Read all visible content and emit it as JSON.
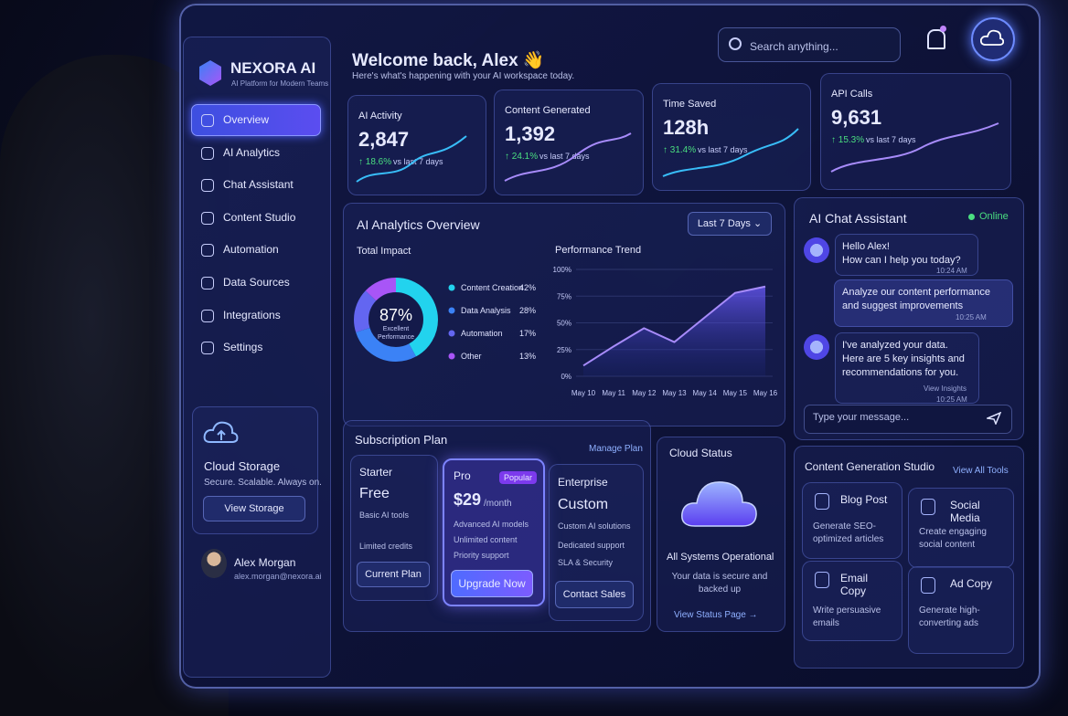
{
  "brand": {
    "name": "NEXORA AI",
    "tagline": "AI Platform for Modern Teams"
  },
  "nav": [
    "Overview",
    "AI Analytics",
    "Chat Assistant",
    "Content Studio",
    "Automation",
    "Data Sources",
    "Integrations",
    "Settings"
  ],
  "cloud_storage": {
    "title": "Cloud Storage",
    "text": "Secure. Scalable. Always on.",
    "button": "View Storage"
  },
  "user": {
    "name": "Alex Morgan",
    "email": "alex.morgan@nexora.ai"
  },
  "header": {
    "title": "Welcome back, Alex 👋",
    "subtitle": "Here's what's happening with your AI workspace today.",
    "search": "Search anything..."
  },
  "stats": [
    {
      "label": "AI Activity",
      "value": "2,847",
      "change": "18.6%",
      "period": "vs last 7 days"
    },
    {
      "label": "Content Generated",
      "value": "1,392",
      "change": "24.1%",
      "period": "vs last 7 days"
    },
    {
      "label": "Time Saved",
      "value": "128h",
      "change": "31.4%",
      "period": "vs last 7 days"
    },
    {
      "label": "API Calls",
      "value": "9,631",
      "change": "15.3%",
      "period": "vs last 7 days"
    }
  ],
  "analytics": {
    "title": "AI Analytics Overview",
    "range": "Last 7 Days"
  },
  "chart_data": [
    {
      "type": "pie",
      "title": "Total Impact",
      "center_label": "87%",
      "center_sublabel": "Excellent Performance",
      "categories": [
        "Content Creation",
        "Data Analysis",
        "Automation",
        "Other"
      ],
      "values": [
        42,
        28,
        17,
        13
      ],
      "value_labels": [
        "42%",
        "28%",
        "17%",
        "13%"
      ],
      "colors": [
        "#22d3ee",
        "#3b82f6",
        "#6366f1",
        "#a855f7"
      ]
    },
    {
      "type": "line",
      "title": "Performance Trend",
      "categories": [
        "May 10",
        "May 11",
        "May 12",
        "May 13",
        "May 14",
        "May 15",
        "May 16"
      ],
      "values": [
        10,
        28,
        45,
        32,
        55,
        78,
        84
      ],
      "color": "#a78bfa",
      "ylim": [
        0,
        100
      ],
      "yticks": [
        {
          "value": 0,
          "label": "0%"
        },
        {
          "value": 25,
          "label": "25%"
        },
        {
          "value": 50,
          "label": "50%"
        },
        {
          "value": 75,
          "label": "75%"
        },
        {
          "value": 100,
          "label": "100%"
        }
      ],
      "grid": true
    }
  ],
  "chat": {
    "title": "AI Chat Assistant",
    "status": "Online",
    "messages": [
      {
        "text": "Hello Alex!\nHow can I help you today?",
        "time": "10:24 AM"
      },
      {
        "text": "Analyze our content performance and suggest improvements",
        "time": "10:25 AM"
      },
      {
        "text": "I've analyzed your data.\nHere are 5 key insights and recommendations for you.",
        "link": "View Insights",
        "time": "10:25 AM"
      }
    ],
    "input": "Type your message..."
  },
  "subscription": {
    "title": "Subscription Plan",
    "link": "Manage Plan",
    "plans": [
      {
        "name": "Starter",
        "price": "Free",
        "features": [
          "Basic AI tools",
          "Limited credits"
        ],
        "button": "Current Plan"
      },
      {
        "name": "Pro",
        "badge": "Popular",
        "price": "$29",
        "period": "/month",
        "features": [
          "Advanced AI models",
          "Unlimited content",
          "Priority support"
        ],
        "button": "Upgrade Now"
      },
      {
        "name": "Enterprise",
        "price": "Custom",
        "features": [
          "Custom AI solutions",
          "Dedicated support",
          "SLA & Security"
        ],
        "button": "Contact Sales"
      }
    ]
  },
  "cloud_status": {
    "title": "Cloud Status",
    "status": "All Systems Operational",
    "text": "Your data is secure and backed up",
    "link": "View Status Page"
  },
  "studio": {
    "title": "Content Generation Studio",
    "link": "View All Tools",
    "tools": [
      {
        "name": "Blog Post",
        "text": "Generate SEO-optimized articles"
      },
      {
        "name": "Social Media",
        "text": "Create engaging social content"
      },
      {
        "name": "Email Copy",
        "text": "Write persuasive emails"
      },
      {
        "name": "Ad Copy",
        "text": "Generate high-converting ads"
      }
    ]
  }
}
